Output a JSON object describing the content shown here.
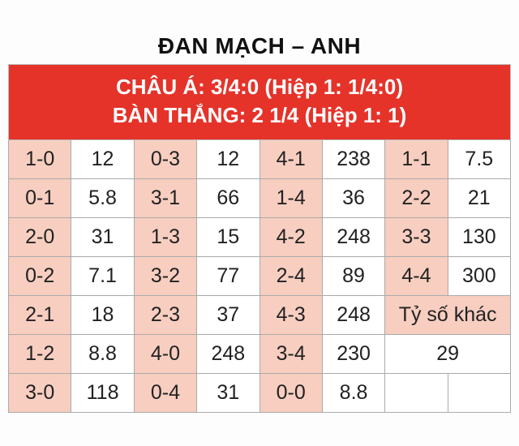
{
  "title": "ĐAN MẠCH – ANH",
  "banner_line1": "CHÂU Á: 3/4:0 (Hiệp 1: 1/4:0)",
  "banner_line2": "BÀN THẮNG: 2 1/4 (Hiệp 1: 1)",
  "colors": {
    "banner_bg": "#e5332a",
    "banner_text": "#ffffff",
    "score_bg": "#f7cec0",
    "border": "#aaaaaa",
    "text": "#222222"
  },
  "rows": [
    {
      "c": [
        {
          "s": "1-0",
          "v": "12"
        },
        {
          "s": "0-3",
          "v": "12"
        },
        {
          "s": "4-1",
          "v": "238"
        },
        {
          "s": "1-1",
          "v": "7.5"
        }
      ]
    },
    {
      "c": [
        {
          "s": "0-1",
          "v": "5.8"
        },
        {
          "s": "3-1",
          "v": "66"
        },
        {
          "s": "1-4",
          "v": "36"
        },
        {
          "s": "2-2",
          "v": "21"
        }
      ]
    },
    {
      "c": [
        {
          "s": "2-0",
          "v": "31"
        },
        {
          "s": "1-3",
          "v": "15"
        },
        {
          "s": "4-2",
          "v": "248"
        },
        {
          "s": "3-3",
          "v": "130"
        }
      ]
    },
    {
      "c": [
        {
          "s": "0-2",
          "v": "7.1"
        },
        {
          "s": "3-2",
          "v": "77"
        },
        {
          "s": "2-4",
          "v": "89"
        },
        {
          "s": "4-4",
          "v": "300"
        }
      ]
    }
  ],
  "row5": {
    "c": [
      {
        "s": "2-1",
        "v": "18"
      },
      {
        "s": "2-3",
        "v": "37"
      },
      {
        "s": "4-3",
        "v": "248"
      }
    ],
    "extra_label": "Tỷ số khác"
  },
  "row6": {
    "c": [
      {
        "s": "1-2",
        "v": "8.8"
      },
      {
        "s": "4-0",
        "v": "248"
      },
      {
        "s": "3-4",
        "v": "230"
      }
    ],
    "extra_value": "29"
  },
  "row7": {
    "c": [
      {
        "s": "3-0",
        "v": "118"
      },
      {
        "s": "0-4",
        "v": "31"
      },
      {
        "s": "0-0",
        "v": "8.8"
      }
    ]
  }
}
